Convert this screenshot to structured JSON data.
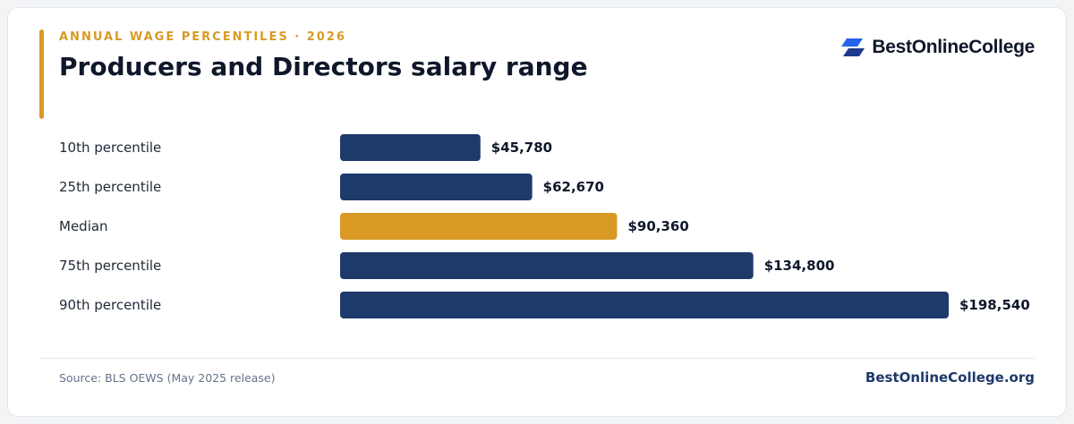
{
  "header": {
    "eyebrow": "ANNUAL WAGE PERCENTILES · 2026",
    "title": "Producers and Directors salary range"
  },
  "brand": {
    "name": "BestOnlineCollege",
    "icon": "stacked-parallelogram-logo-icon"
  },
  "footer": {
    "source": "Source: BLS OEWS (May 2025 release)",
    "site": "BestOnlineCollege.org"
  },
  "colors": {
    "primary": "#1e3a6b",
    "highlight": "#d99a25",
    "text": "#0f172a",
    "muted": "#64748b"
  },
  "chart_data": {
    "type": "bar",
    "orientation": "horizontal",
    "title": "Producers and Directors salary range",
    "xlabel": "",
    "ylabel": "",
    "xlim": [
      0,
      200000
    ],
    "grid": false,
    "legend": "none",
    "categories": [
      "10th percentile",
      "25th percentile",
      "Median",
      "75th percentile",
      "90th percentile"
    ],
    "values": [
      45780,
      62670,
      90360,
      134800,
      198540
    ],
    "value_labels": [
      "$45,780",
      "$62,670",
      "$90,360",
      "$134,800",
      "$198,540"
    ],
    "highlight_category": "Median"
  }
}
